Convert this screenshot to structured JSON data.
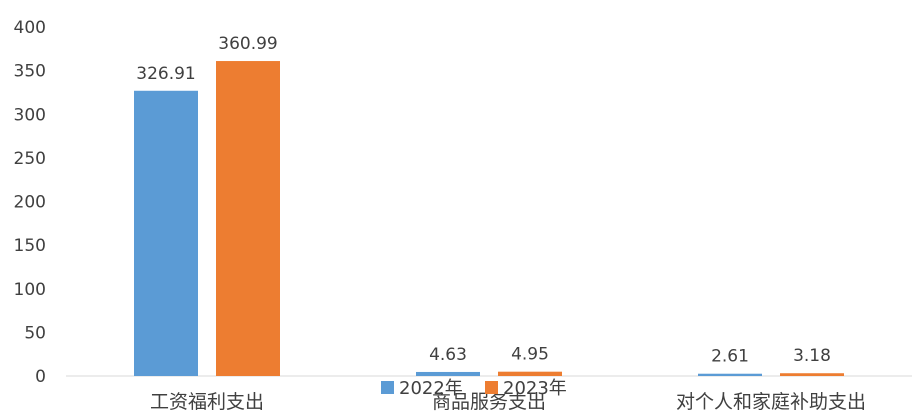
{
  "chart_data": {
    "type": "bar",
    "categories": [
      "工资福利支出",
      "商品服务支出",
      "对个人和家庭补助支出"
    ],
    "series": [
      {
        "name": "2022年",
        "values": [
          326.91,
          4.63,
          2.61
        ],
        "color": "#5B9BD5"
      },
      {
        "name": "2023年",
        "values": [
          360.99,
          4.95,
          3.18
        ],
        "color": "#ED7D31"
      }
    ],
    "data_labels": [
      [
        "326.91",
        "4.63",
        "2.61"
      ],
      [
        "360.99",
        "4.95",
        "3.18"
      ]
    ],
    "yticks": [
      "0",
      "50",
      "100",
      "150",
      "200",
      "250",
      "300",
      "350",
      "400"
    ],
    "ylim": [
      0,
      400
    ],
    "grid": false,
    "legend_position": "bottom"
  }
}
